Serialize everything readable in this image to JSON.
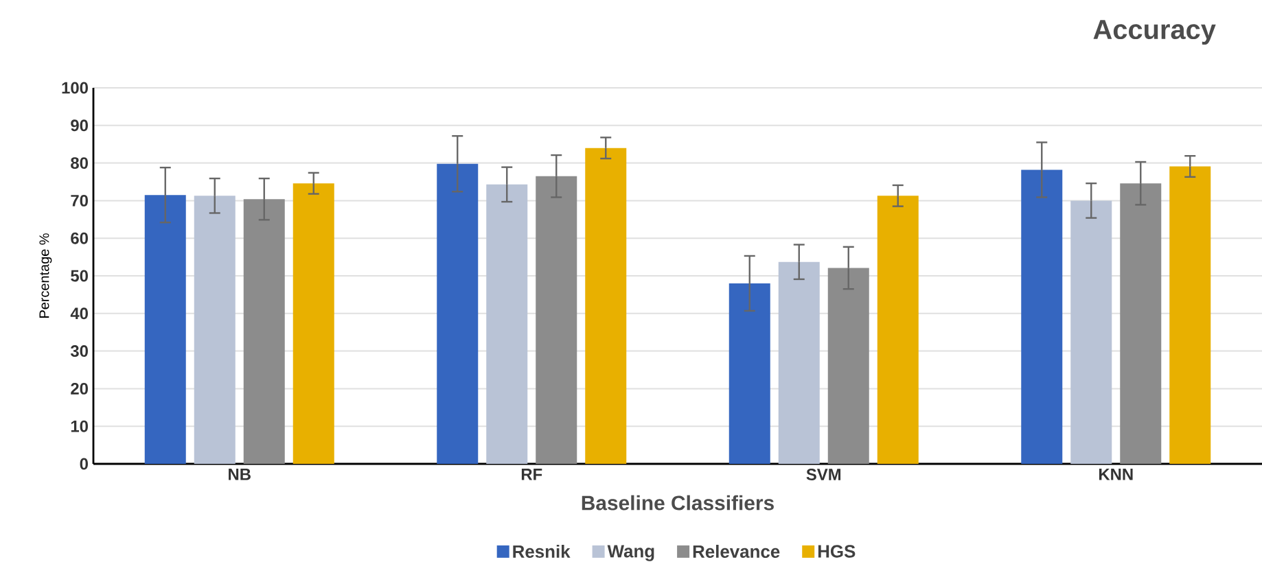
{
  "chart_data": {
    "type": "bar",
    "title": "Accuracy",
    "xlabel": "Baseline Classifiers",
    "ylabel": "Percentage %",
    "categories": [
      "NB",
      "RF",
      "SVM",
      "KNN"
    ],
    "series": [
      {
        "name": "Resnik",
        "color": "#3566c0",
        "values": [
          71.5,
          79.8,
          48.0,
          78.2
        ],
        "errors": [
          7.3,
          7.4,
          7.3,
          7.3
        ]
      },
      {
        "name": "Wang",
        "color": "#b9c3d6",
        "values": [
          71.3,
          74.3,
          53.7,
          70.0
        ],
        "errors": [
          4.6,
          4.6,
          4.6,
          4.6
        ]
      },
      {
        "name": "Relevance",
        "color": "#8c8c8c",
        "values": [
          70.4,
          76.5,
          52.1,
          74.6
        ],
        "errors": [
          5.5,
          5.6,
          5.6,
          5.7
        ]
      },
      {
        "name": "HGS",
        "color": "#e8b000",
        "values": [
          74.6,
          84.0,
          71.3,
          79.1
        ],
        "errors": [
          2.8,
          2.8,
          2.8,
          2.8
        ]
      }
    ],
    "ylim": [
      0,
      100
    ],
    "yticks": [
      0,
      10,
      20,
      30,
      40,
      50,
      60,
      70,
      80,
      90,
      100
    ],
    "grid": "y",
    "legend": "bottom"
  }
}
